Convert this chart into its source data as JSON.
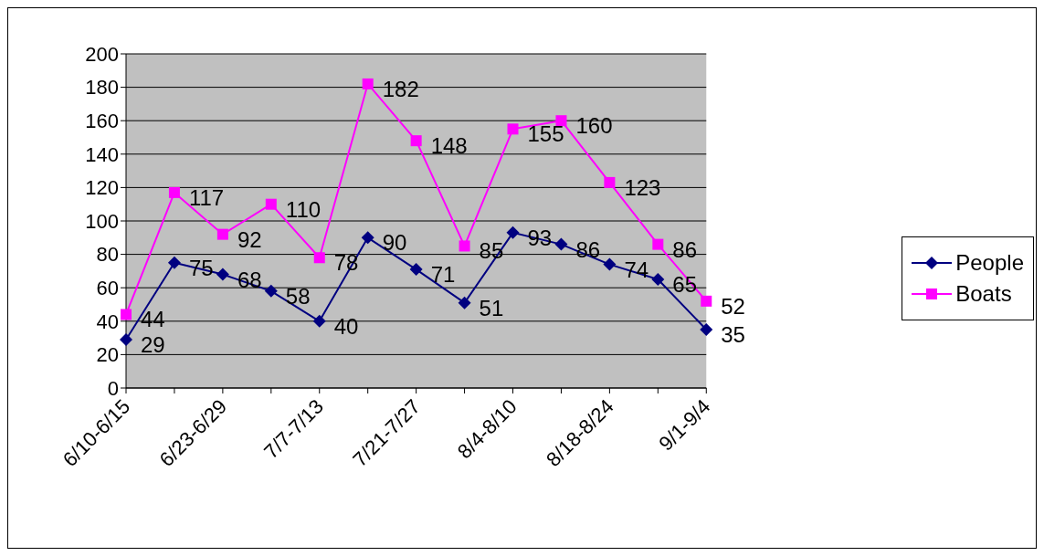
{
  "chart_data": {
    "type": "line",
    "categories": [
      "6/10-6/15",
      null,
      "6/23-6/29",
      null,
      "7/7-7/13",
      null,
      "7/21-7/27",
      null,
      "8/4-8/10",
      null,
      "8/18-8/24",
      null,
      "9/1-9/4"
    ],
    "series": [
      {
        "name": "People",
        "color": "#000080",
        "marker": "diamond",
        "values": [
          29,
          75,
          68,
          58,
          40,
          90,
          71,
          51,
          93,
          86,
          74,
          65,
          35
        ]
      },
      {
        "name": "Boats",
        "color": "#ff00ff",
        "marker": "square",
        "values": [
          44,
          117,
          92,
          110,
          78,
          182,
          148,
          85,
          155,
          160,
          123,
          86,
          52
        ]
      }
    ],
    "ylim": [
      0,
      200
    ],
    "yticks": [
      0,
      20,
      40,
      60,
      80,
      100,
      120,
      140,
      160,
      180,
      200
    ],
    "grid": "y",
    "legend": "right",
    "data_labels": true,
    "line_style": "solid"
  }
}
